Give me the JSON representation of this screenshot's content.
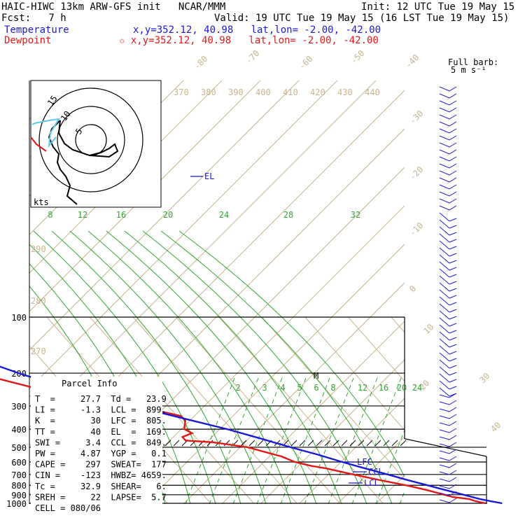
{
  "header": {
    "title_left": "HAIC-HIWC 13km ARW-GFS init   NCAR/MMM",
    "init": "Init: 12 UTC Tue 19 May 15",
    "fcst": "Fcst:   7 h",
    "valid": "Valid: 19 UTC Tue 19 May 15 (16 LST Tue 19 May 15)",
    "temp_label": "Temperature",
    "temp_loc": "x,y=352.12, 40.98   lat,lon= -2.00, -42.00",
    "dew_label": "Dewpoint",
    "dew_loc": "✩ x,y=352.12, 40.98   lat,lon= -2.00, -42.00"
  },
  "barb_key": {
    "line1": "Full barb:",
    "line2": "5 m s⁻¹"
  },
  "chart_data": {
    "type": "skew-T log-P sounding",
    "pressure_levels_hpa": [
      100,
      200,
      300,
      400,
      500,
      600,
      700,
      800,
      900,
      1000
    ],
    "pressure_labels": [
      "100",
      "200",
      "300",
      "400",
      "500",
      "600",
      "700",
      "800",
      "900",
      "1000"
    ],
    "isotherm_labels": [
      "-80",
      "-70",
      "-60",
      "-50",
      "-40",
      "-30",
      "-20",
      "-10",
      "0",
      "10",
      "20",
      "30",
      "40"
    ],
    "theta_e_labels": [
      "370",
      "380",
      "390",
      "400",
      "410",
      "420",
      "430",
      "440"
    ],
    "theta_labels": [
      "290",
      "280",
      "270"
    ],
    "mixing_ratio_upper": [
      "8",
      "12",
      "16",
      "20",
      "24",
      "28",
      "32"
    ],
    "mixing_ratio_lower": [
      "2",
      "3",
      "4",
      "5",
      "6",
      "8",
      "12",
      "16",
      "20",
      "24"
    ],
    "temperature_profile": [
      [
        1000,
        27.7
      ],
      [
        975,
        25.5
      ],
      [
        950,
        23.5
      ],
      [
        925,
        22
      ],
      [
        900,
        20.5
      ],
      [
        850,
        17.3
      ],
      [
        800,
        14
      ],
      [
        750,
        10.5
      ],
      [
        700,
        7
      ],
      [
        650,
        3
      ],
      [
        600,
        -1
      ],
      [
        550,
        -5
      ],
      [
        500,
        -10
      ],
      [
        450,
        -15
      ],
      [
        400,
        -21
      ],
      [
        350,
        -29
      ],
      [
        300,
        -38
      ],
      [
        250,
        -48
      ],
      [
        225,
        -53
      ],
      [
        200,
        -58
      ],
      [
        175,
        -63
      ],
      [
        150,
        -68
      ],
      [
        125,
        -72
      ],
      [
        110,
        -73
      ],
      [
        100,
        -73
      ]
    ],
    "dewpoint_profile": [
      [
        1000,
        23.9
      ],
      [
        975,
        22
      ],
      [
        950,
        21
      ],
      [
        925,
        17.5
      ],
      [
        900,
        16
      ],
      [
        850,
        13
      ],
      [
        800,
        9
      ],
      [
        750,
        4
      ],
      [
        700,
        -1
      ],
      [
        650,
        -6
      ],
      [
        630,
        -9
      ],
      [
        600,
        -12
      ],
      [
        560,
        -14
      ],
      [
        500,
        -20
      ],
      [
        470,
        -27
      ],
      [
        460,
        -33
      ],
      [
        440,
        -33
      ],
      [
        420,
        -30
      ],
      [
        400,
        -31
      ],
      [
        360,
        -29
      ],
      [
        340,
        -29
      ],
      [
        320,
        -33
      ],
      [
        300,
        -40
      ],
      [
        250,
        -55
      ],
      [
        210,
        -65
      ],
      [
        200,
        -67
      ],
      [
        175,
        -72
      ],
      [
        160,
        -77
      ],
      [
        150,
        -80
      ],
      [
        130,
        -79
      ],
      [
        115,
        -77
      ],
      [
        100,
        -75
      ]
    ],
    "levels_marked": [
      "EL",
      "M",
      "LFC",
      "CCL",
      "LCL"
    ],
    "parcel_info": {
      "title": "Parcel Info",
      "rows": [
        "T  =     27.7  Td =   23.9",
        "LI =     -1.3  LCL =  899.",
        "K  =       30  LFC =  805.",
        "TT =       40  EL  =  169.",
        "SWI =     3.4  CCL =  849.",
        "PW =     4.87  YGP =   0.1",
        "CAPE =    297  SWEAT=  177",
        "CIN =    -123  HWBZ= 4659.",
        "Tc =     32.9  SHEAR=   6.",
        "SREH =     22  LAPSE=  5.7",
        "CELL = 080/06"
      ]
    },
    "hodograph": {
      "unit_label": "kts",
      "ring_labels": [
        "5",
        "10",
        "15"
      ]
    }
  }
}
